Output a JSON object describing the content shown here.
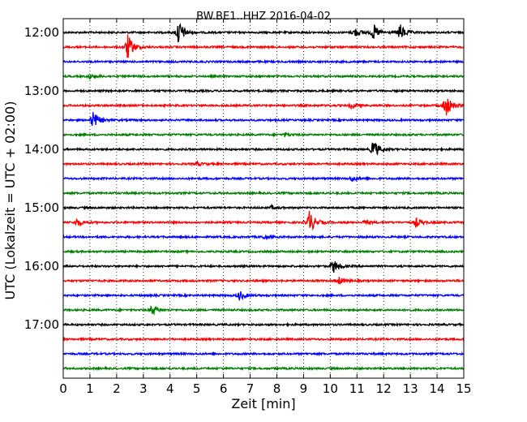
{
  "chart_data": {
    "type": "line",
    "title": "BW.BE1..HHZ 2016-04-02",
    "xlabel": "Zeit  [min]",
    "ylabel": "UTC (Lokalzeit = UTC + 02:00)",
    "xlim": [
      0,
      15
    ],
    "x_ticks": [
      "0",
      "1",
      "2",
      "3",
      "4",
      "5",
      "6",
      "7",
      "8",
      "9",
      "10",
      "11",
      "12",
      "13",
      "14",
      "15"
    ],
    "y_tick_labels": [
      "12:00",
      "13:00",
      "14:00",
      "15:00",
      "16:00",
      "17:00"
    ],
    "grid": "vertical-dotted",
    "trace_interval_min": 15,
    "trace_colors": [
      "#000000",
      "#ff0000",
      "#0000ff",
      "#008000"
    ],
    "series": [
      {
        "start": "12:00",
        "events": [
          [
            4.3,
            1.0
          ],
          [
            10.9,
            0.35
          ],
          [
            11.6,
            0.6
          ],
          [
            12.6,
            0.65
          ]
        ]
      },
      {
        "start": "12:15",
        "events": [
          [
            2.4,
            1.0
          ]
        ]
      },
      {
        "start": "12:30",
        "events": []
      },
      {
        "start": "12:45",
        "events": [
          [
            1.0,
            0.18
          ]
        ]
      },
      {
        "start": "13:00",
        "events": []
      },
      {
        "start": "13:15",
        "events": [
          [
            10.8,
            0.25
          ],
          [
            14.3,
            1.0
          ]
        ]
      },
      {
        "start": "13:30",
        "events": [
          [
            1.1,
            0.7
          ]
        ]
      },
      {
        "start": "13:45",
        "events": [
          [
            8.3,
            0.12
          ]
        ]
      },
      {
        "start": "14:00",
        "events": [
          [
            11.6,
            0.75
          ]
        ]
      },
      {
        "start": "14:15",
        "events": [
          [
            5.0,
            0.12
          ]
        ]
      },
      {
        "start": "14:30",
        "events": [
          [
            10.8,
            0.2
          ]
        ]
      },
      {
        "start": "14:45",
        "events": []
      },
      {
        "start": "15:00",
        "events": [
          [
            7.8,
            0.12
          ]
        ]
      },
      {
        "start": "15:15",
        "events": [
          [
            0.5,
            0.3
          ],
          [
            9.2,
            0.95
          ],
          [
            11.3,
            0.15
          ],
          [
            13.2,
            0.35
          ]
        ]
      },
      {
        "start": "15:30",
        "events": [
          [
            7.5,
            0.12
          ]
        ]
      },
      {
        "start": "15:45",
        "events": []
      },
      {
        "start": "16:00",
        "events": [
          [
            10.1,
            0.55
          ]
        ]
      },
      {
        "start": "16:15",
        "events": [
          [
            10.3,
            0.3
          ]
        ]
      },
      {
        "start": "16:30",
        "events": [
          [
            6.6,
            0.35
          ]
        ]
      },
      {
        "start": "16:45",
        "events": [
          [
            3.3,
            0.4
          ]
        ]
      },
      {
        "start": "17:00",
        "events": []
      },
      {
        "start": "17:15",
        "events": []
      },
      {
        "start": "17:30",
        "events": []
      },
      {
        "start": "17:45",
        "events": []
      }
    ]
  }
}
